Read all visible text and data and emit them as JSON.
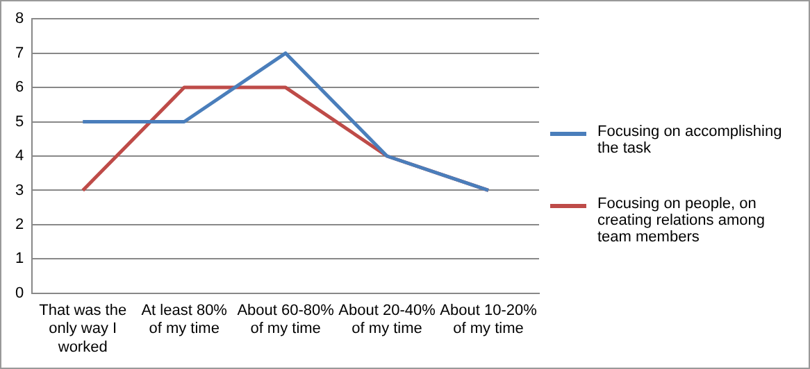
{
  "chart_data": {
    "type": "line",
    "categories": [
      "That was the only way I worked",
      "At least 80% of my time",
      "About 60-80% of my time",
      "About 20-40% of my time",
      "About 10-20% of my time"
    ],
    "series": [
      {
        "name": "Focusing on accomplishing the task",
        "color": "#4a7ebb",
        "values": [
          5,
          5,
          7,
          4,
          3
        ]
      },
      {
        "name": "Focusing on people, on creating relations among team members",
        "color": "#be4b48",
        "values": [
          3,
          6,
          6,
          4,
          3
        ]
      }
    ],
    "ylim": [
      0,
      8
    ],
    "yticks": [
      0,
      1,
      2,
      3,
      4,
      5,
      6,
      7,
      8
    ],
    "grid": "y",
    "legend": "right",
    "marker": "none",
    "line_style": "solid"
  }
}
